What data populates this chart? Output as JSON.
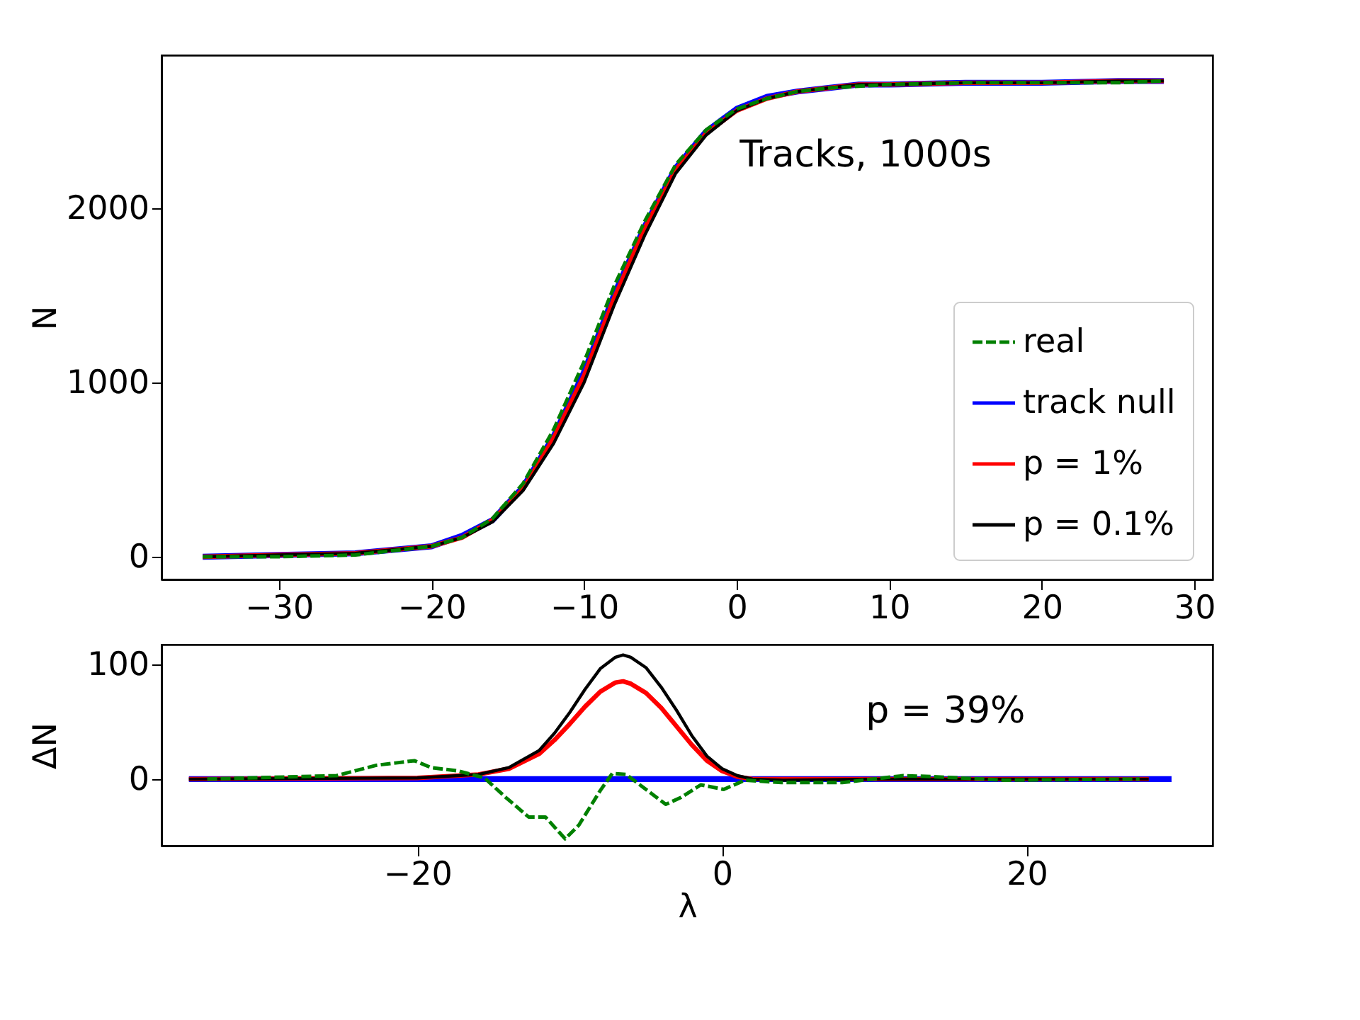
{
  "chart_data": [
    {
      "type": "line",
      "ylabel": "N",
      "xlim": [
        -37.7,
        31.2
      ],
      "ylim": [
        -130,
        2878
      ],
      "xticks": [
        {
          "value": -30,
          "label": "−30"
        },
        {
          "value": -20,
          "label": "−20"
        },
        {
          "value": -10,
          "label": "−10"
        },
        0,
        10,
        20,
        30
      ],
      "yticks": [
        0,
        1000,
        2000
      ],
      "grid": false,
      "legend": "bottom right",
      "annotations": [
        "Tracks, 1000s"
      ],
      "series": [
        {
          "name": "real",
          "color": "#008000",
          "line_style": "dashed",
          "x": [
            -35,
            -30,
            -25,
            -20,
            -18,
            -16,
            -14,
            -12,
            -10,
            -8,
            -6,
            -4,
            -2,
            0,
            2,
            4,
            6,
            8,
            10,
            15,
            20,
            25,
            28
          ],
          "values": [
            0,
            0,
            10,
            60,
            110,
            220,
            420,
            730,
            1120,
            1560,
            1930,
            2250,
            2450,
            2570,
            2630,
            2670,
            2690,
            2700,
            2710,
            2720,
            2720,
            2720,
            2730
          ]
        },
        {
          "name": "track null",
          "color": "#0000ff",
          "line_style": "solid",
          "x": [
            -35,
            -30,
            -25,
            -20,
            -18,
            -16,
            -14,
            -12,
            -10,
            -8,
            -6,
            -4,
            -2,
            0,
            2,
            4,
            6,
            8,
            10,
            15,
            20,
            25,
            28
          ],
          "values": [
            0,
            10,
            20,
            60,
            120,
            210,
            400,
            690,
            1060,
            1510,
            1900,
            2230,
            2440,
            2570,
            2640,
            2670,
            2690,
            2710,
            2710,
            2720,
            2720,
            2730,
            2730
          ]
        },
        {
          "name": "p = 1%",
          "color": "#ff0000",
          "line_style": "solid",
          "x": [
            -35,
            -30,
            -25,
            -20,
            -18,
            -16,
            -14,
            -12,
            -10,
            -8,
            -6,
            -4,
            -2,
            0,
            2,
            4,
            6,
            8,
            10,
            15,
            20,
            25,
            28
          ],
          "values": [
            0,
            10,
            20,
            60,
            110,
            210,
            390,
            680,
            1040,
            1490,
            1890,
            2220,
            2430,
            2560,
            2630,
            2670,
            2690,
            2710,
            2710,
            2720,
            2720,
            2730,
            2730
          ]
        },
        {
          "name": "p = 0.1%",
          "color": "#000000",
          "line_style": "solid",
          "x": [
            -35,
            -30,
            -25,
            -20,
            -18,
            -16,
            -14,
            -12,
            -10,
            -8,
            -6,
            -4,
            -2,
            0,
            2,
            4,
            6,
            8,
            10,
            15,
            20,
            25,
            28
          ],
          "values": [
            0,
            10,
            20,
            60,
            110,
            200,
            380,
            650,
            1000,
            1450,
            1850,
            2200,
            2420,
            2560,
            2630,
            2670,
            2690,
            2710,
            2710,
            2720,
            2720,
            2730,
            2730
          ]
        }
      ]
    },
    {
      "type": "line",
      "xlabel": "λ",
      "ylabel": "ΔN",
      "xlim": [
        -36.8,
        32.2
      ],
      "ylim": [
        -58,
        117
      ],
      "xticks": [
        {
          "value": -20,
          "label": "−20"
        },
        0,
        20
      ],
      "yticks": [
        0,
        100
      ],
      "grid": false,
      "legend": false,
      "annotations": [
        "p = 39%"
      ],
      "series": [
        {
          "color": "#008000",
          "line_style": "dashed",
          "x": [
            -33.8,
            -25.3,
            -22.7,
            -20.2,
            -19.1,
            -17.3,
            -15.6,
            -14.2,
            -12.7,
            -11.6,
            -10.3,
            -9.4,
            -8.0,
            -7.2,
            -6.3,
            -5.2,
            -3.7,
            -2.7,
            -1.4,
            0.1,
            1.5,
            3.9,
            7.9,
            11.9,
            14.1,
            18.5,
            27.4
          ],
          "values": [
            0,
            3,
            12,
            16,
            10,
            7,
            1,
            -16,
            -33,
            -33,
            -52,
            -40,
            -10,
            5,
            4,
            -7,
            -22,
            -16,
            -5,
            -9,
            -1,
            -3,
            -3,
            3,
            2,
            -1,
            0
          ]
        },
        {
          "color": "#0000ff",
          "line_style": "solid",
          "x": [
            -35,
            29.5
          ],
          "values": [
            0,
            0
          ]
        },
        {
          "color": "#ff0000",
          "line_style": "solid",
          "x": [
            -35,
            -20,
            -16,
            -14,
            -12,
            -11,
            -10,
            -9,
            -8,
            -7,
            -6.5,
            -6,
            -5,
            -4,
            -3,
            -2,
            -1,
            0,
            1,
            2,
            28
          ],
          "values": [
            0,
            1,
            4,
            9,
            22,
            34,
            48,
            63,
            76,
            84,
            85,
            83,
            75,
            62,
            46,
            30,
            16,
            7,
            2,
            0,
            0
          ]
        },
        {
          "color": "#000000",
          "line_style": "solid",
          "x": [
            -35,
            -20,
            -16,
            -14,
            -12,
            -11,
            -10,
            -9,
            -8,
            -7,
            -6.5,
            -6,
            -5,
            -4,
            -3,
            -2,
            -1,
            0,
            1,
            2,
            4,
            10,
            28
          ],
          "values": [
            0,
            1,
            4,
            10,
            25,
            40,
            58,
            78,
            96,
            106,
            108,
            106,
            97,
            80,
            60,
            38,
            20,
            9,
            3,
            0,
            -1,
            0,
            0
          ]
        }
      ]
    }
  ]
}
